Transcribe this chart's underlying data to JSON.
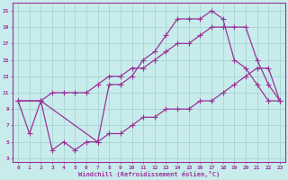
{
  "xlabel": "Windchill (Refroidissement éolien,°C)",
  "bg_color": "#c8ecec",
  "line_color": "#993399",
  "grid_color": "#aad4d4",
  "xlim": [
    -0.5,
    23.5
  ],
  "ylim": [
    2.5,
    22
  ],
  "xticks": [
    0,
    1,
    2,
    3,
    4,
    5,
    6,
    7,
    8,
    9,
    10,
    11,
    12,
    13,
    14,
    15,
    16,
    17,
    18,
    19,
    20,
    21,
    22,
    23
  ],
  "yticks": [
    3,
    5,
    7,
    9,
    11,
    13,
    15,
    17,
    19,
    21
  ],
  "line1_x": [
    0,
    1,
    2,
    3,
    4,
    5,
    6,
    7,
    8,
    9,
    10,
    11,
    12,
    13,
    14,
    15,
    16,
    17,
    18,
    19,
    20,
    21,
    22,
    23
  ],
  "line1_y": [
    10,
    6,
    10,
    4,
    5,
    4,
    5,
    5,
    12,
    12,
    13,
    15,
    16,
    18,
    20,
    20,
    20,
    21,
    20,
    15,
    14,
    12,
    10,
    10
  ],
  "line2_x": [
    0,
    2,
    3,
    4,
    5,
    6,
    7,
    8,
    9,
    10,
    11,
    12,
    13,
    14,
    15,
    16,
    17,
    18,
    19,
    20,
    21,
    22,
    23
  ],
  "line2_y": [
    10,
    10,
    11,
    11,
    11,
    11,
    12,
    13,
    13,
    14,
    14,
    15,
    16,
    17,
    17,
    18,
    19,
    19,
    19,
    19,
    15,
    12,
    10
  ],
  "line3_x": [
    0,
    2,
    7,
    8,
    9,
    10,
    11,
    12,
    13,
    14,
    15,
    16,
    17,
    18,
    19,
    20,
    21,
    22,
    23
  ],
  "line3_y": [
    10,
    10,
    5,
    6,
    6,
    7,
    8,
    8,
    9,
    9,
    9,
    10,
    10,
    11,
    12,
    13,
    14,
    14,
    10
  ]
}
